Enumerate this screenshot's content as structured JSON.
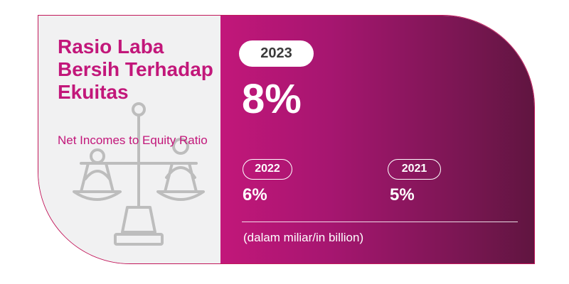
{
  "heading": {
    "title": "Rasio Laba Bersih Terhadap Ekuitas",
    "subtitle": "Net Incomes to Equity Ratio"
  },
  "current": {
    "year": "2023",
    "value": "8%"
  },
  "previous": [
    {
      "year": "2022",
      "value": "6%"
    },
    {
      "year": "2021",
      "value": "5%"
    }
  ],
  "note": "(dalam miliar/in billion)",
  "icon": "balance-scale-icon",
  "colors": {
    "accent": "#c2177a",
    "gradient_start": "#c2177a",
    "gradient_end": "#601540",
    "panel_bg": "#f1f1f2"
  }
}
